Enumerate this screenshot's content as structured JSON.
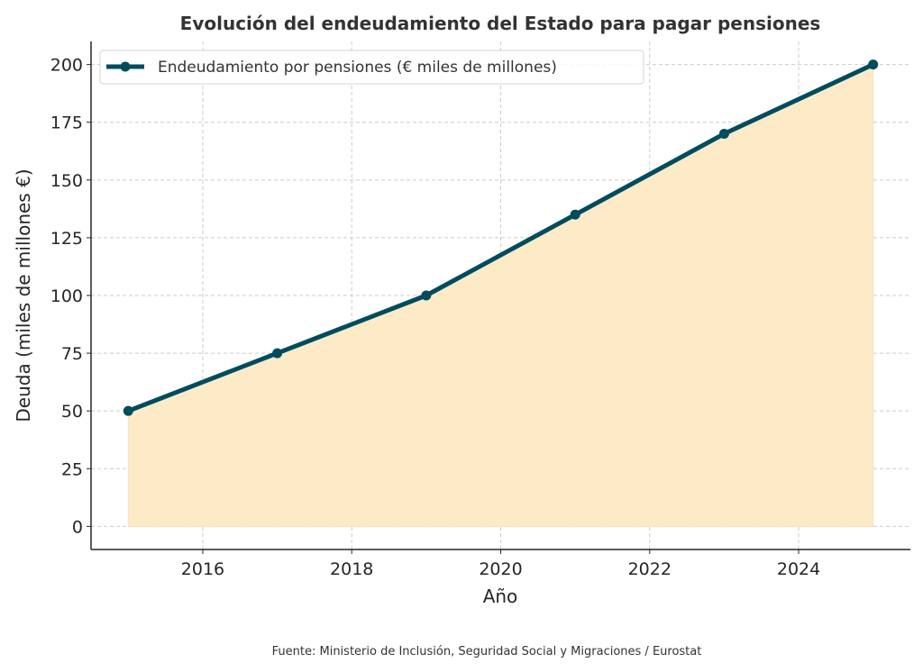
{
  "chart_data": {
    "type": "area",
    "title": "Evolución del endeudamiento del Estado para pagar pensiones",
    "xlabel": "Año",
    "ylabel": "Deuda (miles de millones €)",
    "x": [
      2015,
      2017,
      2019,
      2021,
      2023,
      2025
    ],
    "series": [
      {
        "name": "Endeudamiento por pensiones (€ miles de millones)",
        "values": [
          50,
          75,
          100,
          135,
          170,
          200
        ],
        "color": "#004c5e",
        "fill_color": "#fdebc8",
        "marker": "circle"
      }
    ],
    "xlim": [
      2014.5,
      2025.5
    ],
    "ylim": [
      -10,
      210
    ],
    "xticks": [
      2016,
      2018,
      2020,
      2022,
      2024
    ],
    "xtick_labels": [
      "2016",
      "2018",
      "2020",
      "2022",
      "2024"
    ],
    "yticks": [
      0,
      25,
      50,
      75,
      100,
      125,
      150,
      175,
      200
    ],
    "ytick_labels": [
      "0",
      "25",
      "50",
      "75",
      "100",
      "125",
      "150",
      "175",
      "200"
    ],
    "grid": true,
    "legend_position": "top-left",
    "source_note": "Fuente: Ministerio de Inclusión, Seguridad Social y Migraciones / Eurostat"
  }
}
